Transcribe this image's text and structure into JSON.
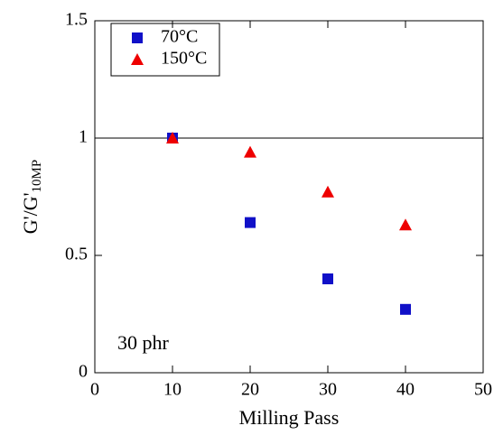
{
  "chart_data": {
    "type": "scatter",
    "x_label": "Milling Pass",
    "y_label": "G'/G'",
    "y_label_sub": "10MP",
    "annotation": "30 phr",
    "xlim": [
      0,
      50
    ],
    "xticks": [
      0,
      10,
      20,
      30,
      40,
      50
    ],
    "ylim": [
      0,
      1.5
    ],
    "yticks": [
      0,
      0.5,
      1,
      1.5
    ],
    "hline": 1,
    "legend": "upper left",
    "series": [
      {
        "name": "70°C",
        "color": "#1010c8",
        "marker": "square",
        "x": [
          10,
          20,
          30,
          40
        ],
        "values": [
          1.0,
          0.64,
          0.4,
          0.27
        ]
      },
      {
        "name": "150°C",
        "color": "#ee0000",
        "marker": "triangle",
        "x": [
          10,
          20,
          30,
          40
        ],
        "values": [
          1.0,
          0.94,
          0.77,
          0.63
        ]
      }
    ]
  }
}
